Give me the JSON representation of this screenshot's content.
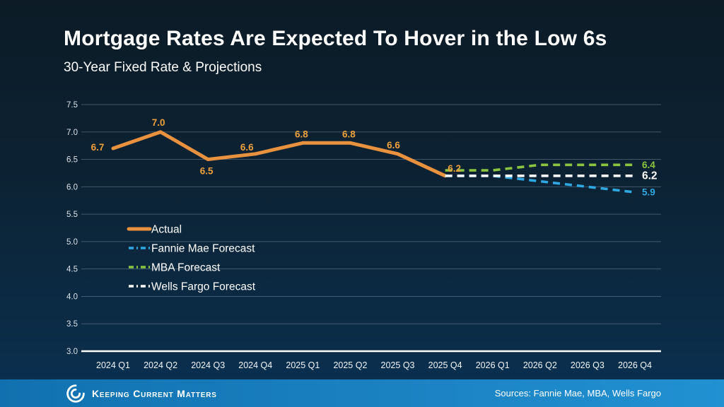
{
  "header": {
    "title": "Mortgage Rates Are Expected To Hover in the Low 6s",
    "subtitle": "30-Year Fixed Rate & Projections"
  },
  "chart_data": {
    "type": "line",
    "title": "30-Year Fixed Rate & Projections",
    "categories": [
      "2024 Q1",
      "2024 Q2",
      "2024 Q3",
      "2024 Q4",
      "2025 Q1",
      "2025 Q2",
      "2025 Q3",
      "2025 Q4",
      "2026 Q1",
      "2026 Q2",
      "2026 Q3",
      "2026 Q4"
    ],
    "ylim": [
      3.0,
      7.5
    ],
    "ytick_step": 0.5,
    "grid": true,
    "legend_position": "middle-left",
    "axis_colors": {
      "gridline": "rgba(190,210,225,0.30)",
      "baseline": "#ffffff",
      "y_tick_text": "#d9e2ea",
      "x_tick_text": "#f2f6f9"
    },
    "series": [
      {
        "name": "Actual",
        "color": "#e8913f",
        "label_color": "#eda03c",
        "style": "solid",
        "values": [
          6.7,
          7.0,
          6.5,
          6.6,
          6.8,
          6.8,
          6.6,
          6.2,
          null,
          null,
          null,
          null
        ],
        "point_labels": [
          "6.7",
          "7.0",
          "6.5",
          "6.6",
          "6.8",
          "6.8",
          "6.6",
          "6.2"
        ]
      },
      {
        "name": "Fannie Mae Forecast",
        "color": "#2fa8e1",
        "style": "dashed",
        "values": [
          null,
          null,
          null,
          null,
          null,
          null,
          null,
          6.2,
          6.2,
          6.1,
          6.0,
          5.9
        ],
        "end_label": "5.9"
      },
      {
        "name": "MBA Forecast",
        "color": "#8bc53f",
        "style": "dashed",
        "values": [
          null,
          null,
          null,
          null,
          null,
          null,
          null,
          6.3,
          6.3,
          6.4,
          6.4,
          6.4
        ],
        "end_label": "6.4"
      },
      {
        "name": "Wells Fargo Forecast",
        "color": "#ffffff",
        "style": "dashed",
        "values": [
          null,
          null,
          null,
          null,
          null,
          null,
          null,
          6.2,
          6.2,
          6.2,
          6.2,
          6.2
        ],
        "end_label": "6.2"
      }
    ]
  },
  "footer": {
    "brand": "Keeping Current Matters",
    "sources": "Sources: Fannie Mae, MBA, Wells Fargo",
    "bar_color_left": "#1171b0",
    "bar_color_right": "#2191d2"
  }
}
